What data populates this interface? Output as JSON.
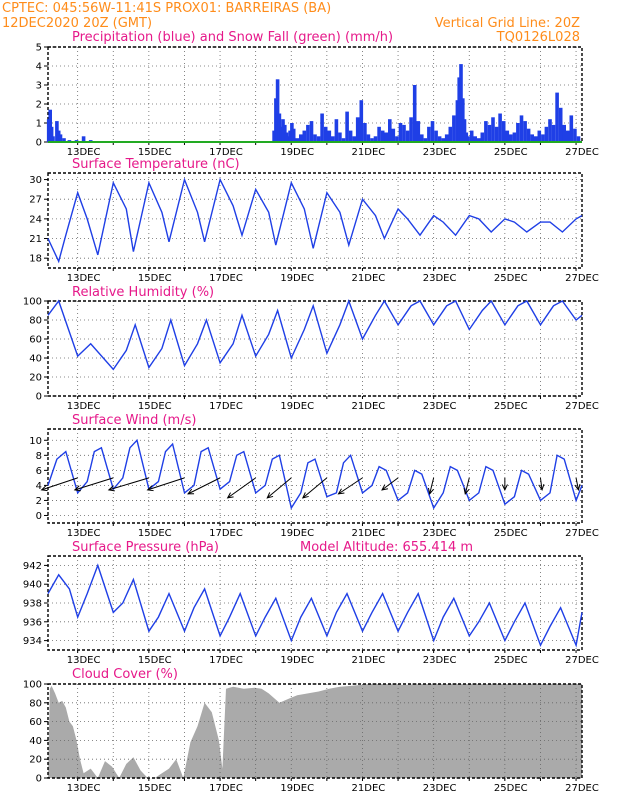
{
  "header": {
    "line1_left": "CPTEC:   045:56W-11:41S   PROX01: BARREIRAS (BA)",
    "line2_left": "12DEC2020 20Z (GMT)",
    "line2_right": "Vertical Grid Line: 20Z",
    "code": "TQ0126L028"
  },
  "colors": {
    "header": "#ff8c1a",
    "title": "#e6198a",
    "line": "#1f3fe6",
    "precip": "#1f3fe6",
    "snow": "#22aa22",
    "cloud": "#aaaaaa",
    "wind_arrow": "#000000"
  },
  "x_axis": {
    "start_day": 12.0,
    "end_day": 27.0,
    "vertical_grid_days": [
      12.833,
      13.833,
      14.833,
      15.833,
      16.833,
      17.833,
      18.833,
      19.833,
      20.833,
      21.833,
      22.833,
      23.833,
      24.833,
      25.833,
      26.833
    ],
    "tick_labels": [
      "13DEC",
      "15DEC",
      "17DEC",
      "19DEC",
      "21DEC",
      "23DEC",
      "25DEC",
      "27DEC"
    ]
  },
  "chart_data": [
    {
      "type": "bar",
      "title": "Precipitation (blue) and Snow Fall (green) (mm/h)",
      "ylim": [
        0,
        5
      ],
      "yticks": [
        0,
        1,
        2,
        3,
        4,
        5
      ],
      "series": [
        {
          "name": "Precipitation",
          "x": [
            12.02,
            12.06,
            12.1,
            12.14,
            12.25,
            12.3,
            12.35,
            12.45,
            12.6,
            12.8,
            13.0,
            13.2,
            15.5,
            16.5,
            18.35,
            18.4,
            18.45,
            18.5,
            18.55,
            18.6,
            18.65,
            18.7,
            18.75,
            18.8,
            18.85,
            18.9,
            19.0,
            19.1,
            19.2,
            19.3,
            19.4,
            19.5,
            19.6,
            19.7,
            19.8,
            19.9,
            20.0,
            20.1,
            20.2,
            20.3,
            20.4,
            20.5,
            20.6,
            20.7,
            20.8,
            20.9,
            21.0,
            21.1,
            21.2,
            21.3,
            21.4,
            21.5,
            21.6,
            21.7,
            21.8,
            21.9,
            22.0,
            22.1,
            22.2,
            22.3,
            22.4,
            22.5,
            22.6,
            22.7,
            22.8,
            22.9,
            23.0,
            23.1,
            23.2,
            23.3,
            23.4,
            23.5,
            23.55,
            23.6,
            23.65,
            23.7,
            23.75,
            23.8,
            23.9,
            24.0,
            24.1,
            24.2,
            24.3,
            24.4,
            24.5,
            24.6,
            24.7,
            24.8,
            24.9,
            25.0,
            25.1,
            25.2,
            25.3,
            25.4,
            25.5,
            25.6,
            25.7,
            25.8,
            25.9,
            26.0,
            26.1,
            26.2,
            26.3,
            26.4,
            26.5,
            26.6,
            26.7,
            26.8,
            26.9
          ],
          "values": [
            1.2,
            1.7,
            0.8,
            0.3,
            1.1,
            0.6,
            0.4,
            0.2,
            0.1,
            0.1,
            0.3,
            0.1,
            0.05,
            0.05,
            0.6,
            2.3,
            3.3,
            1.5,
            0.8,
            1.2,
            0.9,
            0.5,
            0.3,
            0.6,
            1.0,
            0.7,
            0.2,
            0.4,
            0.6,
            0.9,
            1.1,
            0.4,
            0.3,
            1.5,
            0.8,
            0.6,
            0.3,
            1.2,
            0.5,
            0.2,
            1.6,
            0.6,
            0.3,
            1.3,
            2.2,
            1.0,
            0.4,
            0.2,
            0.3,
            0.8,
            0.6,
            0.5,
            1.2,
            0.7,
            0.3,
            1.0,
            0.9,
            0.6,
            1.3,
            3.0,
            1.1,
            0.4,
            0.2,
            0.8,
            1.1,
            0.6,
            0.3,
            0.2,
            0.4,
            0.8,
            1.4,
            2.2,
            3.4,
            4.1,
            2.3,
            1.2,
            0.5,
            0.3,
            0.6,
            0.3,
            0.2,
            0.5,
            1.1,
            0.9,
            1.3,
            0.8,
            1.5,
            1.1,
            0.6,
            0.4,
            0.5,
            1.0,
            1.4,
            1.1,
            0.7,
            0.4,
            0.3,
            0.6,
            0.4,
            0.8,
            1.2,
            0.9,
            2.6,
            1.8,
            0.9,
            0.6,
            1.4,
            0.7,
            0.3
          ]
        },
        {
          "name": "Snow Fall",
          "x": [
            12.0,
            27.0
          ],
          "values": [
            0,
            0
          ]
        }
      ]
    },
    {
      "type": "line",
      "title": "Surface Temperature (nC)",
      "ylim": [
        16.5,
        31
      ],
      "yticks": [
        18,
        21,
        24,
        27,
        30
      ],
      "x": [
        12.0,
        12.3,
        12.5,
        12.833,
        13.1,
        13.4,
        13.833,
        14.2,
        14.4,
        14.833,
        15.2,
        15.4,
        15.833,
        16.2,
        16.4,
        16.833,
        17.2,
        17.45,
        17.833,
        18.2,
        18.4,
        18.833,
        19.2,
        19.45,
        19.833,
        20.2,
        20.45,
        20.833,
        21.2,
        21.45,
        21.833,
        22.1,
        22.45,
        22.833,
        23.1,
        23.45,
        23.833,
        24.1,
        24.45,
        24.833,
        25.1,
        25.45,
        25.833,
        26.1,
        26.45,
        26.833,
        27.0
      ],
      "values": [
        21.0,
        17.5,
        21.5,
        28.0,
        24.0,
        18.5,
        29.5,
        25.5,
        19.0,
        29.5,
        25.0,
        20.5,
        30.0,
        25.0,
        20.5,
        30.0,
        26.0,
        21.5,
        28.5,
        25.0,
        20.0,
        29.5,
        25.5,
        19.5,
        28.0,
        25.0,
        20.0,
        27.0,
        24.5,
        21.0,
        25.5,
        24.0,
        21.5,
        24.5,
        23.5,
        21.5,
        24.5,
        24.0,
        22.0,
        24.0,
        23.5,
        22.0,
        23.5,
        23.5,
        22.0,
        24.0,
        24.5
      ]
    },
    {
      "type": "line",
      "title": "Relative Humidity (%)",
      "ylim": [
        0,
        100
      ],
      "yticks": [
        0,
        20,
        40,
        60,
        80,
        100
      ],
      "x": [
        12.0,
        12.3,
        12.833,
        13.2,
        13.833,
        14.2,
        14.45,
        14.833,
        15.2,
        15.45,
        15.833,
        16.2,
        16.45,
        16.833,
        17.2,
        17.45,
        17.833,
        18.2,
        18.45,
        18.833,
        19.2,
        19.45,
        19.833,
        20.2,
        20.45,
        20.833,
        21.2,
        21.45,
        21.833,
        22.2,
        22.45,
        22.833,
        23.2,
        23.45,
        23.833,
        24.2,
        24.45,
        24.833,
        25.2,
        25.45,
        25.833,
        26.2,
        26.45,
        26.833,
        27.0
      ],
      "values": [
        85,
        100,
        42,
        55,
        28,
        48,
        75,
        30,
        50,
        80,
        32,
        55,
        80,
        35,
        55,
        85,
        42,
        65,
        90,
        40,
        70,
        95,
        45,
        75,
        100,
        60,
        85,
        100,
        75,
        95,
        100,
        75,
        95,
        100,
        70,
        90,
        100,
        75,
        95,
        100,
        75,
        95,
        100,
        80,
        85
      ]
    },
    {
      "type": "line",
      "title": "Surface Wind (m/s)",
      "ylim": [
        -1,
        11.5
      ],
      "yticks": [
        0,
        2,
        4,
        6,
        8,
        10
      ],
      "x": [
        12.0,
        12.25,
        12.5,
        12.833,
        13.1,
        13.3,
        13.5,
        13.833,
        14.1,
        14.3,
        14.5,
        14.833,
        15.1,
        15.3,
        15.5,
        15.833,
        16.1,
        16.3,
        16.5,
        16.833,
        17.1,
        17.3,
        17.5,
        17.833,
        18.1,
        18.3,
        18.5,
        18.833,
        19.1,
        19.3,
        19.5,
        19.833,
        20.1,
        20.3,
        20.5,
        20.833,
        21.1,
        21.3,
        21.5,
        21.833,
        22.1,
        22.3,
        22.5,
        22.833,
        23.1,
        23.3,
        23.5,
        23.833,
        24.1,
        24.3,
        24.5,
        24.833,
        25.1,
        25.3,
        25.5,
        25.833,
        26.1,
        26.3,
        26.5,
        26.833,
        27.0
      ],
      "values": [
        4.0,
        7.5,
        8.5,
        3.0,
        4.5,
        8.5,
        9.0,
        3.5,
        5.0,
        9.0,
        10.0,
        3.5,
        4.5,
        8.5,
        9.5,
        3.0,
        4.0,
        8.5,
        9.0,
        3.5,
        4.5,
        8.0,
        8.5,
        3.0,
        4.0,
        7.5,
        8.0,
        1.0,
        3.0,
        7.0,
        7.5,
        2.5,
        3.0,
        7.0,
        8.0,
        3.0,
        4.0,
        6.5,
        6.0,
        2.0,
        3.0,
        6.0,
        5.5,
        1.0,
        3.0,
        6.5,
        6.0,
        2.0,
        3.0,
        6.5,
        6.0,
        1.5,
        2.5,
        6.0,
        5.5,
        2.0,
        3.0,
        8.0,
        7.5,
        2.0,
        4.0
      ],
      "arrows": [
        {
          "x": 12.833,
          "u": -4.5,
          "v": -1.5
        },
        {
          "x": 13.833,
          "u": -4.8,
          "v": -1.5
        },
        {
          "x": 14.833,
          "u": -5.0,
          "v": -1.5
        },
        {
          "x": 15.833,
          "u": -4.6,
          "v": -1.5
        },
        {
          "x": 16.833,
          "u": -4.0,
          "v": -2.0
        },
        {
          "x": 17.833,
          "u": -3.5,
          "v": -2.5
        },
        {
          "x": 18.833,
          "u": -3.0,
          "v": -2.5
        },
        {
          "x": 19.833,
          "u": -3.0,
          "v": -2.5
        },
        {
          "x": 20.833,
          "u": -3.0,
          "v": -2.0
        },
        {
          "x": 21.833,
          "u": -2.0,
          "v": -1.5
        },
        {
          "x": 22.833,
          "u": -0.5,
          "v": -2.0
        },
        {
          "x": 23.833,
          "u": -0.5,
          "v": -2.0
        },
        {
          "x": 24.833,
          "u": 0.0,
          "v": -1.5
        },
        {
          "x": 25.833,
          "u": 0.2,
          "v": -1.5
        },
        {
          "x": 26.833,
          "u": 0.3,
          "v": -1.5
        }
      ]
    },
    {
      "type": "line",
      "title": "Surface Pressure (hPa)",
      "subtitle": "Model Altitude: 655.414  m",
      "ylim": [
        933,
        943
      ],
      "yticks": [
        934,
        936,
        938,
        940,
        942
      ],
      "x": [
        12.0,
        12.3,
        12.6,
        12.833,
        13.1,
        13.4,
        13.833,
        14.1,
        14.4,
        14.833,
        15.1,
        15.4,
        15.833,
        16.1,
        16.4,
        16.833,
        17.1,
        17.4,
        17.833,
        18.1,
        18.4,
        18.833,
        19.1,
        19.4,
        19.833,
        20.1,
        20.4,
        20.833,
        21.1,
        21.4,
        21.833,
        22.1,
        22.4,
        22.833,
        23.1,
        23.4,
        23.833,
        24.1,
        24.4,
        24.833,
        25.1,
        25.4,
        25.833,
        26.1,
        26.4,
        26.833,
        27.0
      ],
      "values": [
        939.0,
        941.0,
        939.5,
        936.5,
        939.0,
        942.0,
        937.0,
        938.0,
        940.5,
        935.0,
        936.5,
        939.0,
        935.0,
        937.5,
        939.5,
        934.5,
        936.5,
        939.0,
        934.5,
        936.5,
        938.5,
        934.0,
        936.5,
        938.5,
        934.5,
        937.0,
        939.0,
        935.0,
        937.0,
        939.0,
        935.0,
        937.0,
        939.0,
        934.0,
        936.5,
        938.5,
        934.5,
        936.0,
        938.0,
        934.0,
        936.0,
        938.0,
        933.5,
        935.5,
        937.5,
        933.5,
        937.0
      ]
    },
    {
      "type": "area",
      "title": "Cloud Cover (%)",
      "ylim": [
        0,
        100
      ],
      "yticks": [
        0,
        20,
        40,
        60,
        80,
        100
      ],
      "x": [
        12.0,
        12.05,
        12.1,
        12.2,
        12.25,
        12.3,
        12.4,
        12.5,
        12.6,
        12.7,
        12.8,
        12.9,
        13.0,
        13.2,
        13.4,
        13.6,
        13.8,
        14.0,
        14.2,
        14.4,
        14.6,
        14.8,
        15.0,
        15.2,
        15.4,
        15.6,
        15.8,
        16.0,
        16.2,
        16.4,
        16.6,
        16.8,
        16.9,
        17.0,
        17.2,
        17.5,
        17.8,
        18.0,
        18.2,
        18.5,
        18.8,
        19.0,
        19.3,
        19.6,
        19.9,
        20.2,
        20.5,
        20.8,
        21.0,
        21.5,
        22.0,
        22.5,
        23.0,
        23.5,
        24.0,
        24.5,
        25.0,
        25.5,
        26.0,
        26.5,
        27.0
      ],
      "values": [
        0,
        95,
        98,
        90,
        85,
        80,
        82,
        75,
        60,
        55,
        40,
        20,
        5,
        10,
        0,
        18,
        12,
        0,
        15,
        22,
        8,
        0,
        0,
        5,
        10,
        20,
        0,
        38,
        55,
        80,
        70,
        40,
        10,
        95,
        97,
        95,
        96,
        95,
        90,
        80,
        85,
        88,
        90,
        92,
        95,
        97,
        98,
        99,
        100,
        100,
        99,
        100,
        100,
        100,
        100,
        100,
        100,
        100,
        100,
        100,
        100
      ]
    }
  ]
}
